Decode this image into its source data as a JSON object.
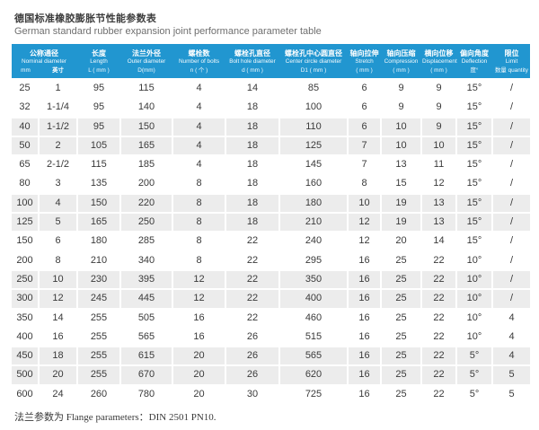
{
  "page": {
    "title_zh": "德国标准橡胶膨胀节性能参数表",
    "title_en": "German standard rubber expansion joint performance parameter table",
    "footer_note": "法兰参数为 Flange parameters：DIN 2501 PN10."
  },
  "colors": {
    "header_bg": "#2196d0",
    "stripe_bg": "#ececec",
    "text": "#3a3a3a",
    "header_text": "#ffffff"
  },
  "table": {
    "nominal_group": {
      "zh": "公称通径",
      "en": "Nominal diameter",
      "unit_mm": "mm",
      "unit_inch": "英寸"
    },
    "columns": [
      {
        "key": "length",
        "zh": "长度",
        "en": "Length",
        "unit": "L ( mm )"
      },
      {
        "key": "outer-diameter",
        "zh": "法兰外径",
        "en": "Outer diameter",
        "unit": "D(mm)"
      },
      {
        "key": "number-of-bolts",
        "zh": "螺栓数",
        "en": "Number of bolts",
        "unit": "n ( 个 )"
      },
      {
        "key": "bolt-hole-diameter",
        "zh": "螺栓孔直径",
        "en": "Bolt hole diameter",
        "unit": "d ( mm )"
      },
      {
        "key": "center-circle-diameter",
        "zh": "螺栓孔中心圆直径",
        "en": "Center circle diameter",
        "unit": "D1 ( mm )"
      },
      {
        "key": "stretch",
        "zh": "轴向拉伸",
        "en": "Stretch",
        "unit": "( mm )"
      },
      {
        "key": "compression",
        "zh": "轴向压缩",
        "en": "Compression",
        "unit": "( mm )"
      },
      {
        "key": "displacement",
        "zh": "横向位移",
        "en": "Displacement",
        "unit": "( mm )"
      },
      {
        "key": "deflection",
        "zh": "偏向角度",
        "en": "Deflection",
        "unit": "度°"
      },
      {
        "key": "limit",
        "zh": "限位",
        "en": "Limit",
        "unit": "数量 quantity"
      }
    ],
    "rows": [
      [
        "25",
        "1",
        "95",
        "115",
        "4",
        "14",
        "85",
        "6",
        "9",
        "9",
        "15°",
        "/"
      ],
      [
        "32",
        "1-1/4",
        "95",
        "140",
        "4",
        "18",
        "100",
        "6",
        "9",
        "9",
        "15°",
        "/"
      ],
      [
        "40",
        "1-1/2",
        "95",
        "150",
        "4",
        "18",
        "110",
        "6",
        "10",
        "9",
        "15°",
        "/"
      ],
      [
        "50",
        "2",
        "105",
        "165",
        "4",
        "18",
        "125",
        "7",
        "10",
        "10",
        "15°",
        "/"
      ],
      [
        "65",
        "2-1/2",
        "115",
        "185",
        "4",
        "18",
        "145",
        "7",
        "13",
        "11",
        "15°",
        "/"
      ],
      [
        "80",
        "3",
        "135",
        "200",
        "8",
        "18",
        "160",
        "8",
        "15",
        "12",
        "15°",
        "/"
      ],
      [
        "100",
        "4",
        "150",
        "220",
        "8",
        "18",
        "180",
        "10",
        "19",
        "13",
        "15°",
        "/"
      ],
      [
        "125",
        "5",
        "165",
        "250",
        "8",
        "18",
        "210",
        "12",
        "19",
        "13",
        "15°",
        "/"
      ],
      [
        "150",
        "6",
        "180",
        "285",
        "8",
        "22",
        "240",
        "12",
        "20",
        "14",
        "15°",
        "/"
      ],
      [
        "200",
        "8",
        "210",
        "340",
        "8",
        "22",
        "295",
        "16",
        "25",
        "22",
        "10°",
        "/"
      ],
      [
        "250",
        "10",
        "230",
        "395",
        "12",
        "22",
        "350",
        "16",
        "25",
        "22",
        "10°",
        "/"
      ],
      [
        "300",
        "12",
        "245",
        "445",
        "12",
        "22",
        "400",
        "16",
        "25",
        "22",
        "10°",
        "/"
      ],
      [
        "350",
        "14",
        "255",
        "505",
        "16",
        "22",
        "460",
        "16",
        "25",
        "22",
        "10°",
        "4"
      ],
      [
        "400",
        "16",
        "255",
        "565",
        "16",
        "26",
        "515",
        "16",
        "25",
        "22",
        "10°",
        "4"
      ],
      [
        "450",
        "18",
        "255",
        "615",
        "20",
        "26",
        "565",
        "16",
        "25",
        "22",
        "5°",
        "4"
      ],
      [
        "500",
        "20",
        "255",
        "670",
        "20",
        "26",
        "620",
        "16",
        "25",
        "22",
        "5°",
        "5"
      ],
      [
        "600",
        "24",
        "260",
        "780",
        "20",
        "30",
        "725",
        "16",
        "25",
        "22",
        "5°",
        "5"
      ]
    ]
  }
}
